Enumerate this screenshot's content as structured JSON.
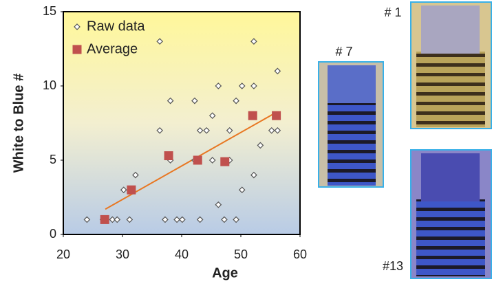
{
  "chart_data": {
    "type": "scatter",
    "xlabel": "Age",
    "ylabel": "White to Blue #",
    "xlim": [
      20,
      60
    ],
    "xticks": [
      20,
      30,
      40,
      50,
      60
    ],
    "ylim": [
      0,
      15
    ],
    "yticks": [
      0,
      5,
      10,
      15
    ],
    "series": [
      {
        "name": "Raw data",
        "color": "#555555",
        "marker": "diamond",
        "x": [
          24,
          26.7,
          28.3,
          29.1,
          30.2,
          31.2,
          32.2,
          36.3,
          36.3,
          37.2,
          38.1,
          38.1,
          39.2,
          40.1,
          42.2,
          42.2,
          43.1,
          43.1,
          44.2,
          45.2,
          45.2,
          46.2,
          46.2,
          47.2,
          48.1,
          48.1,
          49.2,
          49.2,
          50.2,
          50.2,
          52.2,
          52.2,
          52.2,
          53.3,
          55.2,
          56.2,
          56.2
        ],
        "values": [
          1,
          1,
          1,
          1,
          3,
          1,
          4,
          13,
          7,
          1,
          9,
          5,
          1,
          1,
          9,
          5,
          7,
          1,
          7,
          8,
          5,
          2,
          10,
          1,
          7,
          5,
          9,
          1,
          10,
          3,
          13,
          10,
          4,
          6,
          7,
          7,
          11
        ]
      },
      {
        "name": "Average",
        "color": "#c0504d",
        "marker": "square",
        "x": [
          27,
          31.5,
          37.8,
          42.7,
          47.3,
          52,
          56
        ],
        "values": [
          1,
          3,
          5.3,
          5,
          4.9,
          8,
          8
        ]
      }
    ],
    "fit": {
      "color": "#e87722",
      "x": [
        27.1,
        55.9
      ],
      "values": [
        1.7,
        8.2
      ]
    },
    "legend": "upper left"
  },
  "images": [
    {
      "label": "# 7"
    },
    {
      "label": "# 1"
    },
    {
      "label": "#13"
    }
  ]
}
